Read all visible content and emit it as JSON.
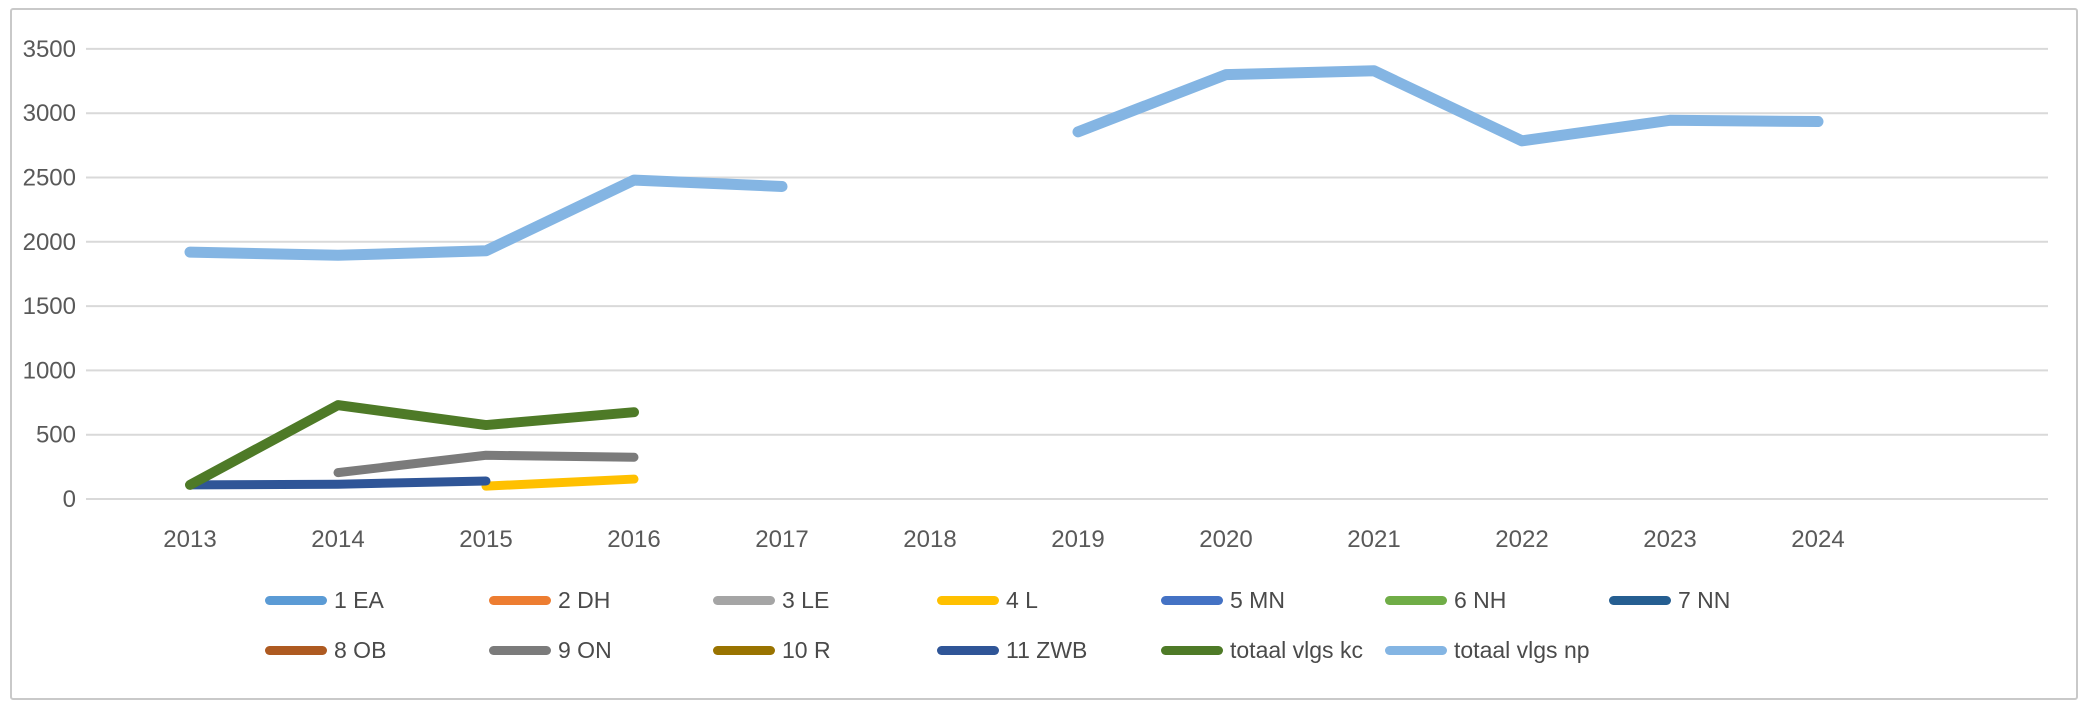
{
  "chart_data": {
    "type": "line",
    "title": "",
    "xlabel": "",
    "ylabel": "",
    "categories": [
      "2013",
      "2014",
      "2015",
      "2016",
      "2017",
      "2018",
      "2019",
      "2020",
      "2021",
      "2022",
      "2023",
      "2024"
    ],
    "ylim": [
      0,
      3500
    ],
    "ytick_step": 500,
    "grid": true,
    "legend_position": "bottom",
    "series": [
      {
        "name": "1 EA",
        "color": "#5B9BD5",
        "values": [
          null,
          null,
          null,
          null,
          null,
          null,
          null,
          null,
          null,
          null,
          null,
          null
        ]
      },
      {
        "name": "2 DH",
        "color": "#ED7D31",
        "values": [
          null,
          null,
          null,
          null,
          null,
          null,
          null,
          null,
          null,
          null,
          null,
          null
        ]
      },
      {
        "name": "3 LE",
        "color": "#A5A5A5",
        "values": [
          null,
          null,
          null,
          null,
          null,
          null,
          null,
          null,
          null,
          null,
          null,
          null
        ]
      },
      {
        "name": "4 L",
        "color": "#FFC000",
        "values": [
          null,
          null,
          100,
          155,
          null,
          null,
          null,
          null,
          null,
          null,
          null,
          null
        ]
      },
      {
        "name": "5 MN",
        "color": "#4472C4",
        "values": [
          null,
          null,
          null,
          null,
          null,
          null,
          null,
          null,
          null,
          null,
          null,
          null
        ]
      },
      {
        "name": "6 NH",
        "color": "#70AD47",
        "values": [
          null,
          null,
          null,
          null,
          null,
          null,
          null,
          null,
          null,
          null,
          null,
          null
        ]
      },
      {
        "name": "7 NN",
        "color": "#255E91",
        "values": [
          null,
          null,
          null,
          null,
          null,
          null,
          null,
          null,
          null,
          null,
          null,
          null
        ]
      },
      {
        "name": "8 OB",
        "color": "#AE5A21",
        "values": [
          null,
          null,
          null,
          null,
          null,
          null,
          null,
          null,
          null,
          null,
          null,
          null
        ]
      },
      {
        "name": "9 ON",
        "color": "#7B7B7B",
        "values": [
          null,
          205,
          340,
          325,
          null,
          null,
          null,
          null,
          null,
          null,
          null,
          null
        ]
      },
      {
        "name": "10 R",
        "color": "#997300",
        "values": [
          null,
          null,
          null,
          null,
          null,
          null,
          null,
          null,
          null,
          null,
          null,
          null
        ]
      },
      {
        "name": "11 ZWB",
        "color": "#2F5597",
        "values": [
          110,
          115,
          140,
          null,
          null,
          null,
          null,
          null,
          null,
          null,
          null,
          null
        ]
      },
      {
        "name": "totaal vlgs kc",
        "color": "#4E7A27",
        "values": [
          110,
          730,
          575,
          675,
          null,
          null,
          null,
          null,
          null,
          null,
          null,
          null
        ]
      },
      {
        "name": "totaal vlgs np",
        "color": "#84B5E3",
        "values": [
          1920,
          1895,
          1930,
          2480,
          2430,
          null,
          2855,
          3300,
          3330,
          2785,
          2945,
          2935
        ]
      }
    ]
  },
  "axis": {
    "y_tick_labels": [
      "0",
      "500",
      "1000",
      "1500",
      "2000",
      "2500",
      "3000",
      "3500"
    ],
    "x_tick_labels": [
      "2013",
      "2014",
      "2015",
      "2016",
      "2017",
      "2018",
      "2019",
      "2020",
      "2021",
      "2022",
      "2023",
      "2024"
    ]
  },
  "legend": {
    "rows": [
      [
        "1 EA",
        "2 DH",
        "3 LE",
        "4 L",
        "5 MN",
        "6 NH",
        "7 NN"
      ],
      [
        "8 OB",
        "9 ON",
        "10 R",
        "11 ZWB",
        "totaal vlgs kc",
        "totaal vlgs np"
      ]
    ]
  }
}
